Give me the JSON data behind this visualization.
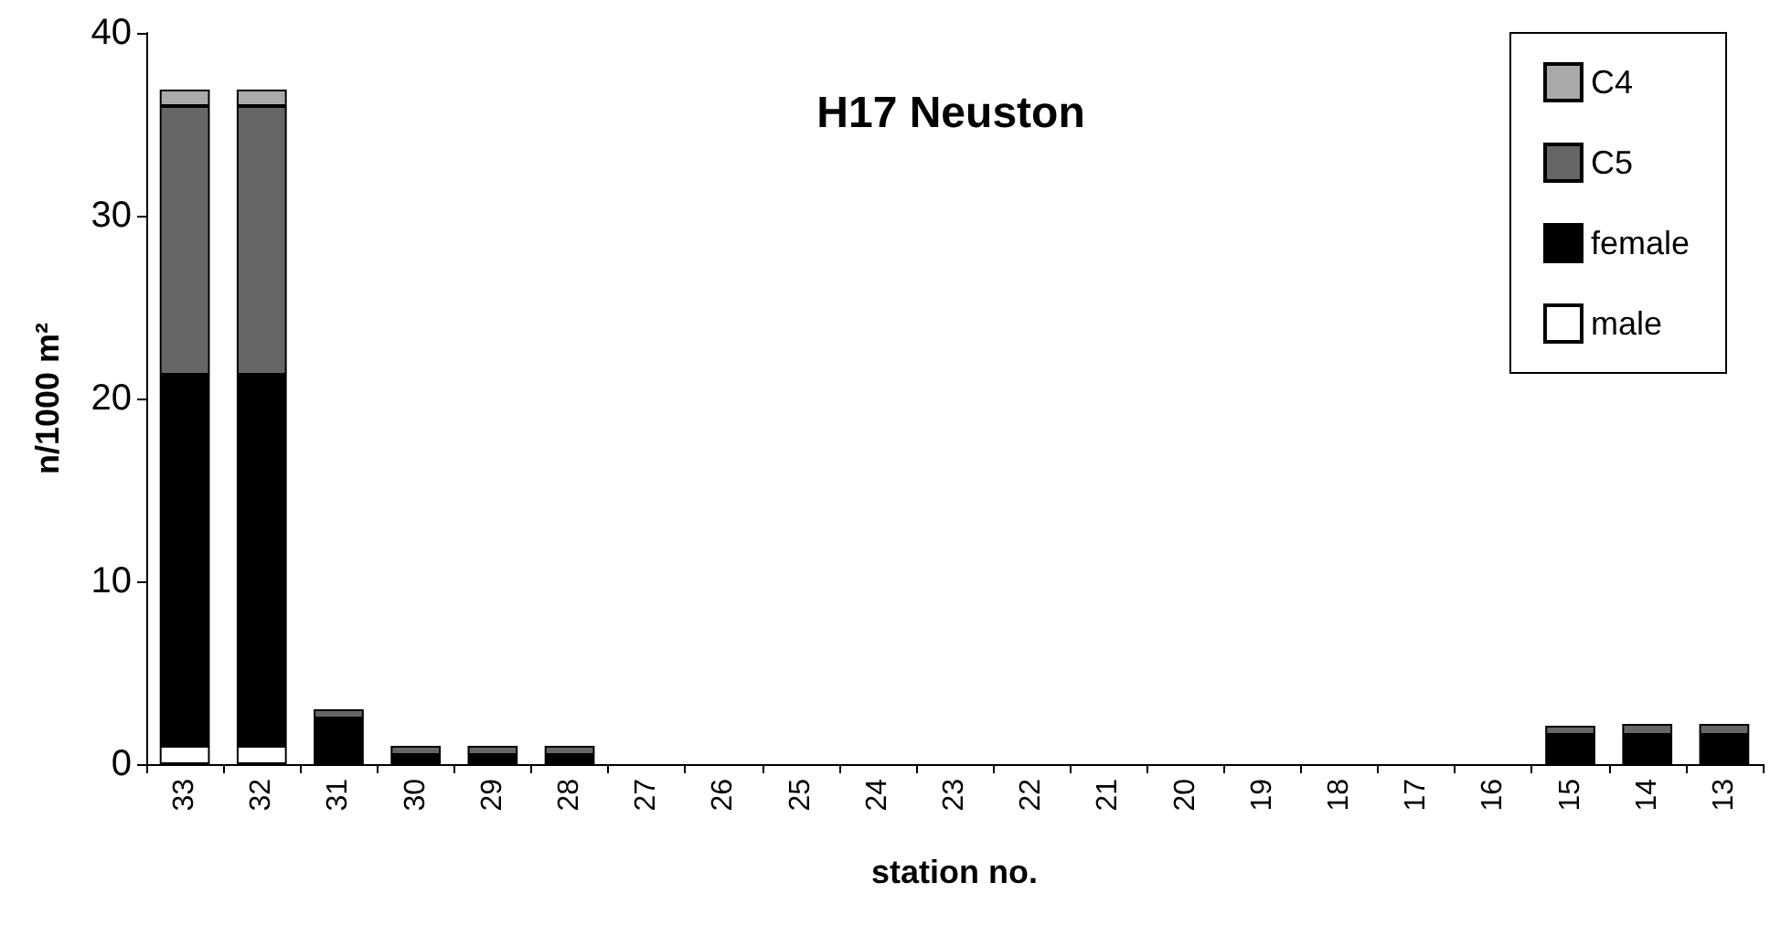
{
  "chart_data": {
    "type": "bar",
    "title": "H17 Neuston",
    "xlabel": "station no.",
    "ylabel": "n/1000 m²",
    "categories": [
      "33",
      "32",
      "31",
      "30",
      "29",
      "28",
      "27",
      "26",
      "25",
      "24",
      "23",
      "22",
      "21",
      "20",
      "19",
      "18",
      "17",
      "16",
      "15",
      "14",
      "13"
    ],
    "stacked": true,
    "ylim": [
      0,
      40
    ],
    "yticks": [
      0,
      10,
      20,
      30,
      40
    ],
    "grid": false,
    "legend": "top right",
    "series": [
      {
        "name": "male",
        "color": "#ffffff",
        "values": [
          1,
          1,
          0,
          0,
          0,
          0,
          0,
          0,
          0,
          0,
          0,
          0,
          0,
          0,
          0,
          0,
          0,
          0,
          0,
          0,
          0
        ]
      },
      {
        "name": "female",
        "color": "#000000",
        "values": [
          20.3,
          20.3,
          2.5,
          0.5,
          0.5,
          0.5,
          0,
          0,
          0,
          0,
          0,
          0,
          0,
          0,
          0,
          0,
          0,
          0,
          1.6,
          1.6,
          1.6
        ]
      },
      {
        "name": "C5",
        "color": "#666666",
        "values": [
          14.7,
          14.7,
          0.5,
          0.5,
          0.5,
          0.5,
          0,
          0,
          0,
          0,
          0,
          0,
          0,
          0,
          0,
          0,
          0,
          0,
          0.5,
          0.6,
          0.6
        ]
      },
      {
        "name": "C4",
        "color": "#aaaaaa",
        "values": [
          0.9,
          0.9,
          0,
          0,
          0,
          0,
          0,
          0,
          0,
          0,
          0,
          0,
          0,
          0,
          0,
          0,
          0,
          0,
          0,
          0,
          0
        ]
      }
    ]
  }
}
